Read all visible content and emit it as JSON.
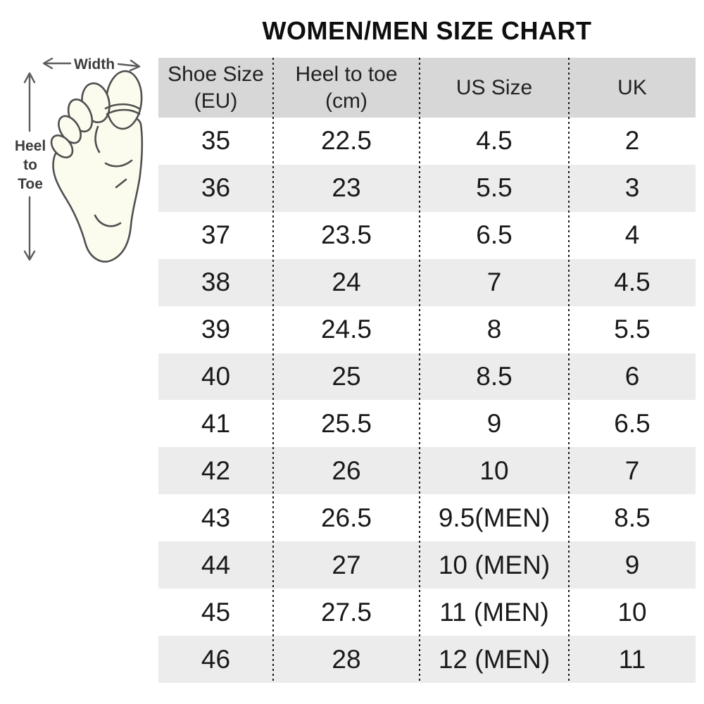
{
  "chart_data": {
    "type": "table",
    "title": "WOMEN/MEN SIZE CHART",
    "columns": [
      "Shoe Size (EU)",
      "Heel to toe (cm)",
      "US Size",
      "UK"
    ],
    "rows": [
      [
        "35",
        "22.5",
        "4.5",
        "2"
      ],
      [
        "36",
        "23",
        "5.5",
        "3"
      ],
      [
        "37",
        "23.5",
        "6.5",
        "4"
      ],
      [
        "38",
        "24",
        "7",
        "4.5"
      ],
      [
        "39",
        "24.5",
        "8",
        "5.5"
      ],
      [
        "40",
        "25",
        "8.5",
        "6"
      ],
      [
        "41",
        "25.5",
        "9",
        "6.5"
      ],
      [
        "42",
        "26",
        "10",
        "7"
      ],
      [
        "43",
        "26.5",
        "9.5(MEN)",
        "8.5"
      ],
      [
        "44",
        "27",
        "10 (MEN)",
        "9"
      ],
      [
        "45",
        "27.5",
        "11 (MEN)",
        "10"
      ],
      [
        "46",
        "28",
        "12 (MEN)",
        "11"
      ]
    ],
    "layout": {
      "striped_rows": true,
      "column_dividers": "dotted",
      "legend": "none"
    }
  },
  "table": {
    "headers": [
      {
        "line1": "Shoe Size",
        "line2": "(EU)"
      },
      {
        "line1": "Heel to toe",
        "line2": "(cm)"
      },
      {
        "line1": "US Size",
        "line2": ""
      },
      {
        "line1": "UK",
        "line2": ""
      }
    ]
  },
  "diagram": {
    "width_label": "Width",
    "heel_to_toe_lines": [
      "Heel",
      "to",
      "Toe"
    ]
  },
  "colors": {
    "header_bg": "#d7d7d7",
    "stripe_bg": "#ececec",
    "divider": "#1a1a1a",
    "text": "#191919",
    "title": "#0e0e0e",
    "foot_fill": "#fbfbee",
    "foot_outline": "#4f4f4f",
    "arrow": "#5c5c5c"
  }
}
